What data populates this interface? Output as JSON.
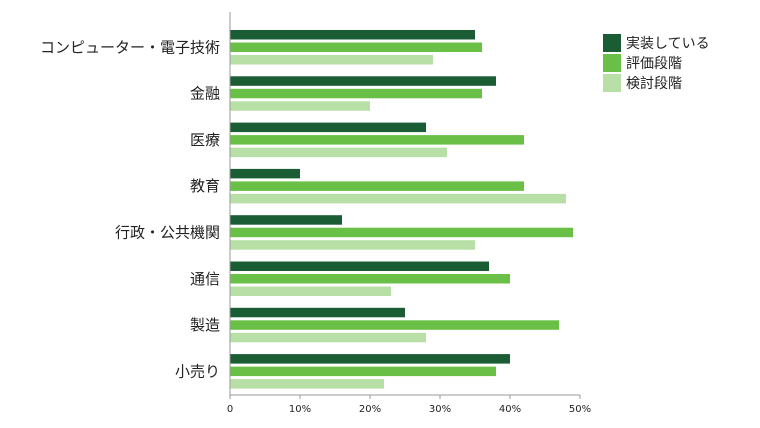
{
  "chart_data": {
    "type": "bar",
    "orientation": "horizontal",
    "title": "",
    "xlabel": "",
    "ylabel": "",
    "categories": [
      "コンピューター・電子技術",
      "金融",
      "医療",
      "教育",
      "行政・公共機関",
      "通信",
      "製造",
      "小売り"
    ],
    "series": [
      {
        "name": "実装している",
        "color": "#1a5c34",
        "values": [
          35,
          38,
          28,
          10,
          16,
          37,
          25,
          40
        ]
      },
      {
        "name": "評価段階",
        "color": "#6ac046",
        "values": [
          36,
          36,
          42,
          42,
          49,
          40,
          47,
          38
        ]
      },
      {
        "name": "検討段階",
        "color": "#b8dfa6",
        "values": [
          29,
          20,
          31,
          48,
          35,
          23,
          28,
          22
        ]
      }
    ],
    "xlim": [
      0,
      50
    ],
    "ticks": [
      0,
      10,
      20,
      30,
      40,
      50
    ],
    "tick_labels": [
      "0",
      "10%",
      "20%",
      "30%",
      "40%",
      "50%"
    ],
    "grid": false,
    "legend_position": "top-right"
  }
}
